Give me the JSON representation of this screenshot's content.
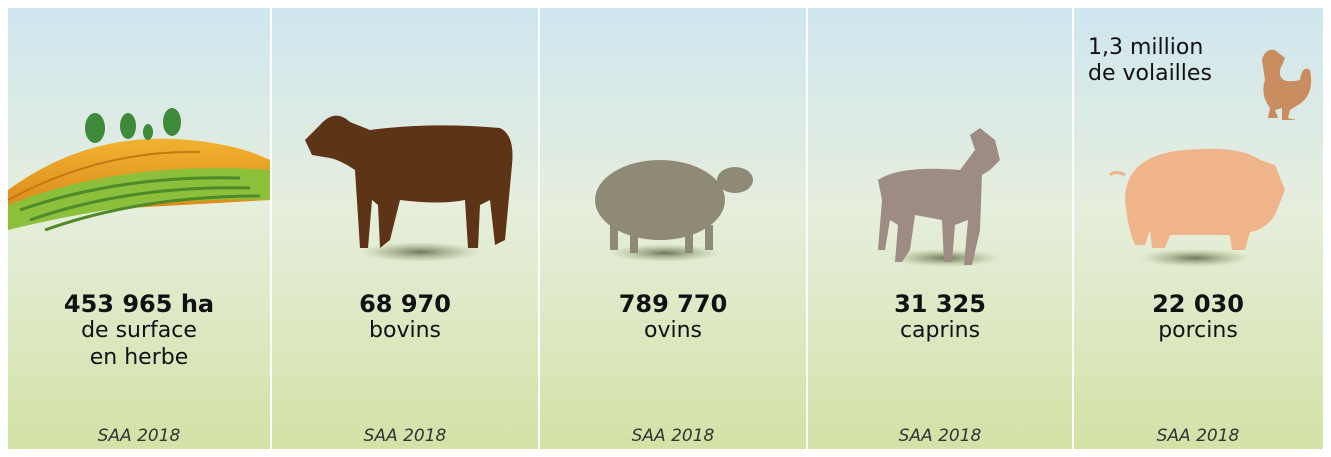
{
  "panels": [
    {
      "value": "453 965 ha",
      "label": [
        "de surface",
        "en herbe"
      ],
      "source": "SAA 2018"
    },
    {
      "value": "68 970",
      "label": [
        "bovins"
      ],
      "source": "SAA 2018"
    },
    {
      "value": "789 770",
      "label": [
        "ovins"
      ],
      "source": "SAA 2018"
    },
    {
      "value": "31 325",
      "label": [
        "caprins"
      ],
      "source": "SAA 2018"
    },
    {
      "value": "22 030",
      "label": [
        "porcins"
      ],
      "source": "SAA 2018"
    }
  ],
  "extra": {
    "value": "1,3 million",
    "label": "de volailles"
  }
}
